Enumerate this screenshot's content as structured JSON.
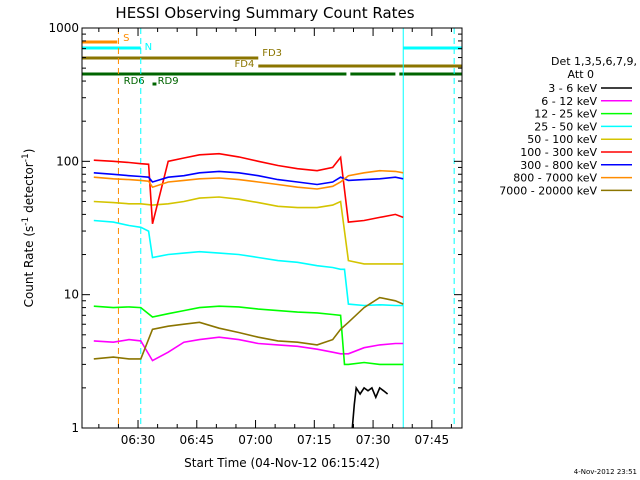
{
  "chart_data": {
    "type": "line",
    "title": "HESSI Observing Summary Count Rates",
    "xlabel": "Start Time (04-Nov-12 06:15:42)",
    "ylabel": "Count Rate (s",
    "ylabel_sup1": "-1",
    "ylabel_mid": " detector",
    "ylabel_sup2": "-1",
    "ylabel_end": ")",
    "yscale": "log",
    "ylim": [
      1,
      1000
    ],
    "xlim_minutes": [
      0,
      97
    ],
    "x_ticks": [
      {
        "minute": 14.3,
        "label": "06:30"
      },
      {
        "minute": 29.3,
        "label": "06:45"
      },
      {
        "minute": 44.3,
        "label": "07:00"
      },
      {
        "minute": 59.3,
        "label": "07:15"
      },
      {
        "minute": 74.3,
        "label": "07:30"
      },
      {
        "minute": 89.3,
        "label": "07:45"
      }
    ],
    "y_ticks": [
      {
        "value": 1,
        "label": "1"
      },
      {
        "value": 10,
        "label": "10"
      },
      {
        "value": 100,
        "label": "100"
      },
      {
        "value": 1000,
        "label": "1000"
      }
    ],
    "legend": {
      "placement": "right",
      "header": [
        "Det 1,3,5,6,7,9,",
        "Att 0"
      ],
      "entries": [
        {
          "label": "3 - 6 keV",
          "color": "#000000"
        },
        {
          "label": "6 - 12 keV",
          "color": "#ff00ff"
        },
        {
          "label": "12 - 25 keV",
          "color": "#00ff00"
        },
        {
          "label": "25 - 50 keV",
          "color": "#00ffff"
        },
        {
          "label": "50 - 100 keV",
          "color": "#d4c400"
        },
        {
          "label": "100 - 300 keV",
          "color": "#ff0000"
        },
        {
          "label": "300 - 800 keV",
          "color": "#0000ff"
        },
        {
          "label": "800 - 7000 keV",
          "color": "#ff8c00"
        },
        {
          "label": "7000 - 20000 keV",
          "color": "#8b7500"
        }
      ]
    },
    "flags": [
      {
        "label": "S",
        "color": "#ff8c00",
        "segments": [
          [
            0,
            9
          ]
        ]
      },
      {
        "label": "N",
        "color": "#00ffff",
        "segments": [
          [
            0,
            15
          ],
          [
            82,
            97
          ]
        ]
      },
      {
        "label": "FD3",
        "color": "#8b7500",
        "segments": [
          [
            0,
            45
          ]
        ]
      },
      {
        "label": "FD4",
        "color": "#8b7500",
        "segments": [
          [
            45,
            97
          ]
        ]
      },
      {
        "label": "RD6",
        "color": "#006400",
        "segments": [
          [
            0,
            67.5
          ],
          [
            68.5,
            80
          ],
          [
            81,
            97
          ]
        ]
      },
      {
        "label": "RD9",
        "color": "#006400",
        "segments": [
          [
            18,
            19
          ]
        ]
      }
    ],
    "markers": [
      {
        "minute": 9.3,
        "color": "#ff8c00",
        "style": "dashed"
      },
      {
        "minute": 15,
        "color": "#00ffff",
        "style": "dashed"
      },
      {
        "minute": 82,
        "color": "#00ffff",
        "style": "solid"
      },
      {
        "minute": 95,
        "color": "#00ffff",
        "style": "dashed"
      }
    ],
    "series": [
      {
        "name": "3 - 6 keV",
        "color": "#000000",
        "x": [
          69,
          69.5,
          70,
          71,
          72,
          73,
          74,
          75,
          76,
          77,
          78
        ],
        "y": [
          1,
          1.5,
          2,
          1.8,
          2,
          1.9,
          2,
          1.7,
          2,
          1.9,
          1.8
        ]
      },
      {
        "name": "6 - 12 keV",
        "color": "#ff00ff",
        "x": [
          3,
          8,
          12,
          15,
          18,
          22,
          26,
          30,
          35,
          40,
          45,
          50,
          55,
          60,
          64,
          66,
          68,
          72,
          76,
          80,
          82
        ],
        "y": [
          4.5,
          4.4,
          4.6,
          4.5,
          3.2,
          3.7,
          4.4,
          4.6,
          4.8,
          4.6,
          4.3,
          4.2,
          4.1,
          3.9,
          3.7,
          3.6,
          3.6,
          4.0,
          4.2,
          4.3,
          4.3
        ]
      },
      {
        "name": "12 - 25 keV",
        "color": "#00ff00",
        "x": [
          3,
          8,
          12,
          15,
          18,
          22,
          26,
          30,
          35,
          40,
          45,
          50,
          55,
          60,
          64,
          66,
          67,
          68,
          72,
          76,
          80,
          82
        ],
        "y": [
          8.2,
          8.0,
          8.1,
          8.0,
          6.8,
          7.2,
          7.6,
          8.0,
          8.2,
          8.1,
          7.8,
          7.6,
          7.4,
          7.3,
          7.1,
          7.0,
          3.0,
          3.0,
          3.1,
          3.0,
          3.0,
          3.0
        ]
      },
      {
        "name": "25 - 50 keV",
        "color": "#00ffff",
        "x": [
          3,
          8,
          12,
          15,
          17,
          18,
          22,
          26,
          30,
          35,
          40,
          45,
          50,
          55,
          60,
          64,
          66,
          67,
          68,
          72,
          76,
          80,
          82
        ],
        "y": [
          36,
          35,
          33,
          32,
          30,
          19,
          20,
          20.5,
          21,
          20.5,
          20,
          19,
          18,
          17.5,
          16.5,
          16,
          15.5,
          15.5,
          8.5,
          8.3,
          8.4,
          8.3,
          8.3
        ]
      },
      {
        "name": "50 - 100 keV",
        "color": "#d4c400",
        "x": [
          3,
          8,
          12,
          15,
          18,
          22,
          26,
          30,
          35,
          40,
          45,
          50,
          55,
          60,
          64,
          66,
          68,
          72,
          76,
          80,
          82
        ],
        "y": [
          50,
          49,
          48,
          48,
          47,
          48,
          50,
          53,
          54,
          52,
          49,
          46,
          45,
          45,
          47,
          50,
          18,
          17,
          17,
          17,
          17
        ]
      },
      {
        "name": "100 - 300 keV",
        "color": "#ff0000",
        "x": [
          3,
          8,
          12,
          15,
          17,
          18,
          22,
          26,
          30,
          35,
          40,
          45,
          50,
          55,
          60,
          64,
          66,
          68,
          72,
          76,
          80,
          82
        ],
        "y": [
          102,
          100,
          98,
          96,
          95,
          34,
          100,
          106,
          112,
          114,
          108,
          100,
          93,
          88,
          85,
          90,
          107,
          35,
          36,
          38,
          40,
          38
        ]
      },
      {
        "name": "300 - 800 keV",
        "color": "#0000ff",
        "x": [
          3,
          8,
          12,
          15,
          17,
          18,
          22,
          26,
          30,
          35,
          40,
          45,
          50,
          55,
          60,
          64,
          66,
          68,
          72,
          76,
          80,
          82
        ],
        "y": [
          82,
          80,
          78,
          77,
          76,
          70,
          76,
          78,
          82,
          84,
          82,
          78,
          73,
          70,
          67,
          70,
          76,
          72,
          73,
          74,
          76,
          74
        ]
      },
      {
        "name": "800 - 7000 keV",
        "color": "#ff8c00",
        "x": [
          3,
          8,
          12,
          15,
          17,
          18,
          22,
          26,
          30,
          35,
          40,
          45,
          50,
          55,
          60,
          64,
          66,
          68,
          72,
          76,
          80,
          82
        ],
        "y": [
          76,
          74,
          73,
          72,
          71,
          64,
          70,
          72,
          74,
          75,
          73,
          70,
          67,
          64,
          62,
          65,
          70,
          78,
          82,
          85,
          84,
          82
        ]
      },
      {
        "name": "7000 - 20000 keV",
        "color": "#8b7500",
        "x": [
          3,
          8,
          12,
          15,
          18,
          22,
          26,
          30,
          35,
          40,
          45,
          50,
          55,
          60,
          64,
          66,
          68,
          72,
          76,
          80,
          82
        ],
        "y": [
          3.3,
          3.4,
          3.3,
          3.3,
          5.5,
          5.8,
          6.0,
          6.2,
          5.6,
          5.2,
          4.8,
          4.5,
          4.4,
          4.2,
          4.6,
          5.5,
          6.2,
          8.0,
          9.5,
          9.0,
          8.5
        ]
      }
    ]
  },
  "footer_stamp": "4-Nov-2012 23:51"
}
